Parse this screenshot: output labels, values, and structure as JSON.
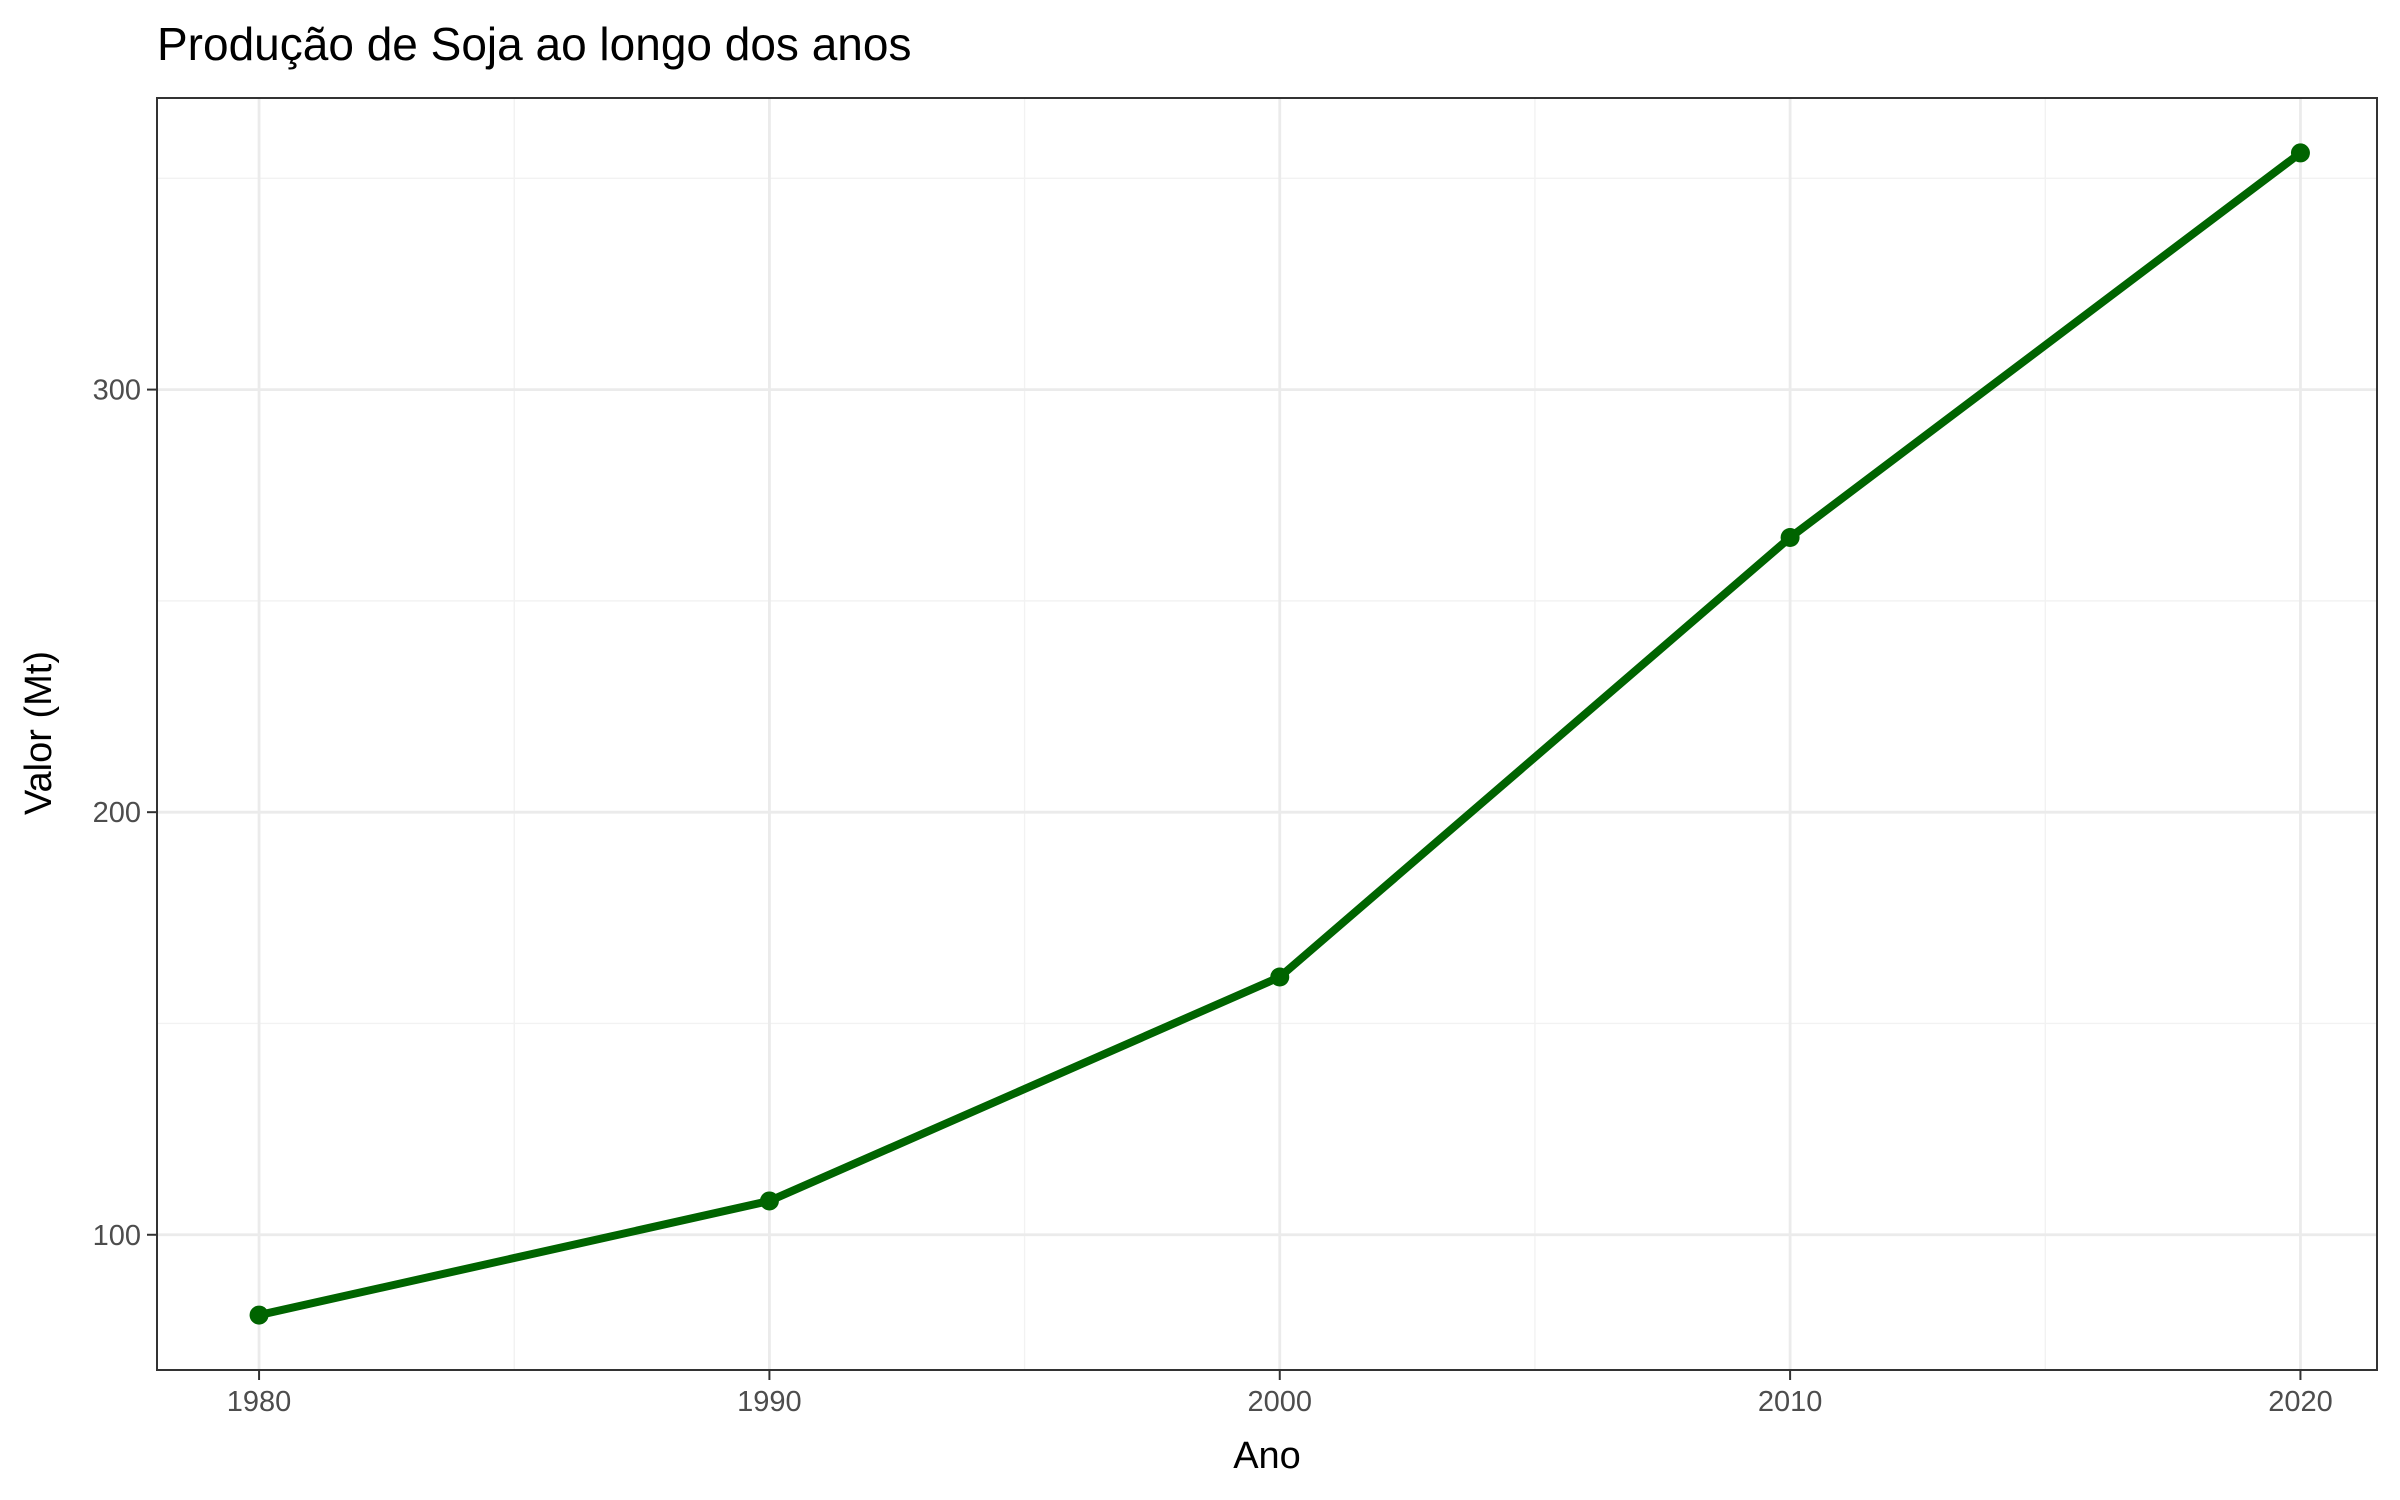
{
  "chart_data": {
    "type": "line",
    "title": "Produção de Soja ao longo dos anos",
    "xlabel": "Ano",
    "ylabel": "Valor (Mt)",
    "x": [
      1980,
      1990,
      2000,
      2010,
      2020
    ],
    "series": [
      {
        "values": [
          81,
          108,
          161,
          265,
          356
        ],
        "color": "#006400"
      }
    ],
    "x_ticks": [
      "1980",
      "1990",
      "2000",
      "2010",
      "2020"
    ],
    "y_ticks": [
      "100",
      "200",
      "300"
    ],
    "xlim": [
      1978,
      2021.5
    ],
    "ylim": [
      68,
      369
    ],
    "grid": true,
    "panel_border": true,
    "colors": {
      "line": "#006400",
      "grid_major": "#ebebeb",
      "grid_minor": "#f2f2f2",
      "border": "#333333",
      "tick_label": "#4d4d4d"
    }
  }
}
